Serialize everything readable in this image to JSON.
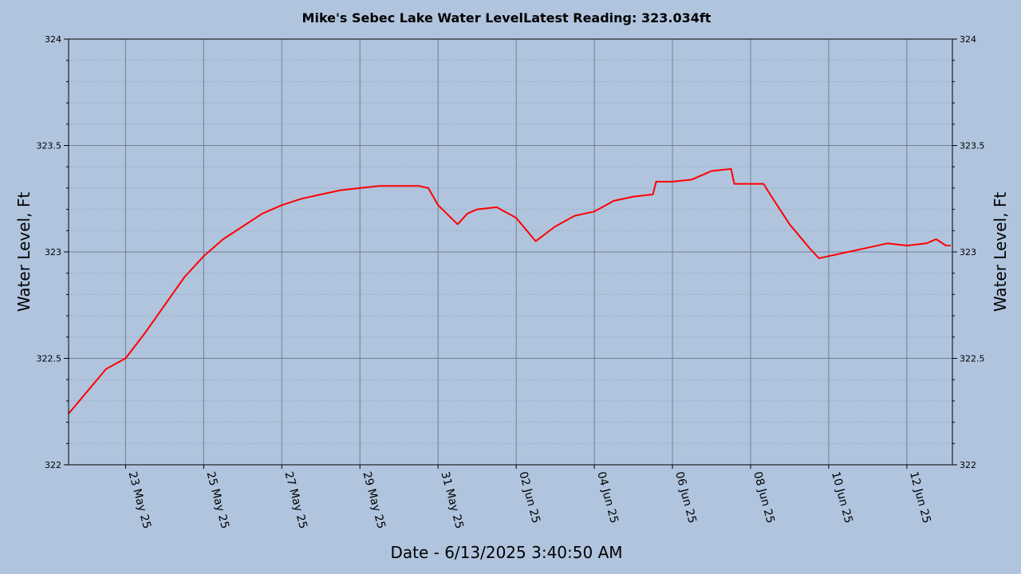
{
  "chart_data": {
    "type": "line",
    "title": "Mike's Sebec Lake Water LevelLatest Reading: 323.034ft",
    "xlabel": "Date - 6/13/2025 3:40:50 AM",
    "ylabel": "Water Level, Ft",
    "y2label": "Water Level, Ft",
    "ylim": [
      322,
      324
    ],
    "y_ticks": [
      "322",
      "322.5",
      "323",
      "323.5",
      "324"
    ],
    "xlim": [
      "2025-05-21T13:00",
      "2025-06-13T04:00"
    ],
    "x_ticks": [
      {
        "date": "2025-05-23",
        "label": "23 May 25"
      },
      {
        "date": "2025-05-25",
        "label": "25 May 25"
      },
      {
        "date": "2025-05-27",
        "label": "27 May 25"
      },
      {
        "date": "2025-05-29",
        "label": "29 May 25"
      },
      {
        "date": "2025-05-31",
        "label": "31 May 25"
      },
      {
        "date": "2025-06-02",
        "label": "02 Jun 25"
      },
      {
        "date": "2025-06-04",
        "label": "04 Jun 25"
      },
      {
        "date": "2025-06-06",
        "label": "06 Jun 25"
      },
      {
        "date": "2025-06-08",
        "label": "08 Jun 25"
      },
      {
        "date": "2025-06-10",
        "label": "10 Jun 25"
      },
      {
        "date": "2025-06-12",
        "label": "12 Jun 25"
      }
    ],
    "grid": true,
    "colors": {
      "line": "#ff0000",
      "background": "#b0c4de",
      "grid_major": "#6f7f94",
      "grid_minor": "#8e9fb6"
    },
    "series": [
      {
        "x": [
          "2025-05-21T13:00",
          "2025-05-22T00:00",
          "2025-05-22T12:00",
          "2025-05-23T00:00",
          "2025-05-23T06:00",
          "2025-05-23T12:00",
          "2025-05-24T00:00",
          "2025-05-24T12:00",
          "2025-05-25T00:00",
          "2025-05-25T12:00",
          "2025-05-26T00:00",
          "2025-05-26T12:00",
          "2025-05-27T00:00",
          "2025-05-27T12:00",
          "2025-05-28T00:00",
          "2025-05-28T12:00",
          "2025-05-29T00:00",
          "2025-05-29T12:00",
          "2025-05-30T00:00",
          "2025-05-30T12:00",
          "2025-05-30T18:00",
          "2025-05-31T00:00",
          "2025-05-31T08:00",
          "2025-05-31T12:00",
          "2025-05-31T18:00",
          "2025-06-01T00:00",
          "2025-06-01T12:00",
          "2025-06-02T00:00",
          "2025-06-02T12:00",
          "2025-06-03T00:00",
          "2025-06-03T12:00",
          "2025-06-04T00:00",
          "2025-06-04T12:00",
          "2025-06-05T00:00",
          "2025-06-05T12:00",
          "2025-06-05T14:00",
          "2025-06-06T00:00",
          "2025-06-06T12:00",
          "2025-06-07T00:00",
          "2025-06-07T12:00",
          "2025-06-07T14:00",
          "2025-06-08T00:00",
          "2025-06-08T08:00",
          "2025-06-08T12:00",
          "2025-06-09T00:00",
          "2025-06-09T12:00",
          "2025-06-09T18:00",
          "2025-06-10T00:00",
          "2025-06-10T12:00",
          "2025-06-11T00:00",
          "2025-06-11T12:00",
          "2025-06-12T00:00",
          "2025-06-12T12:00",
          "2025-06-12T18:00",
          "2025-06-13T00:00",
          "2025-06-13T03:00"
        ],
        "y": [
          322.24,
          322.34,
          322.45,
          322.5,
          322.56,
          322.62,
          322.75,
          322.88,
          322.98,
          323.06,
          323.12,
          323.18,
          323.22,
          323.25,
          323.27,
          323.29,
          323.3,
          323.31,
          323.31,
          323.31,
          323.3,
          323.22,
          323.16,
          323.13,
          323.18,
          323.2,
          323.21,
          323.16,
          323.05,
          323.12,
          323.17,
          323.19,
          323.24,
          323.26,
          323.27,
          323.33,
          323.33,
          323.34,
          323.38,
          323.39,
          323.32,
          323.32,
          323.32,
          323.27,
          323.13,
          323.02,
          322.97,
          322.98,
          323.0,
          323.02,
          323.04,
          323.03,
          323.04,
          323.06,
          323.03,
          323.03
        ]
      }
    ]
  }
}
